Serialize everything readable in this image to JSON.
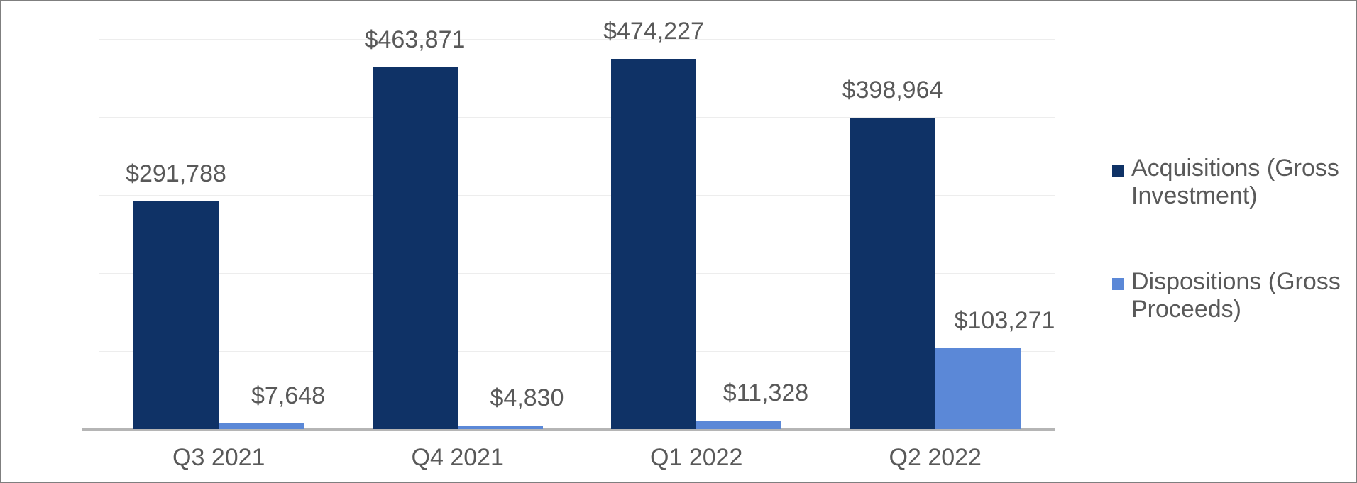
{
  "chart_data": {
    "type": "bar",
    "title": "",
    "xlabel": "",
    "ylabel": "",
    "categories": [
      "Q3 2021",
      "Q4 2021",
      "Q1 2022",
      "Q2 2022"
    ],
    "series": [
      {
        "name": "Acquisitions (Gross Investment)",
        "color": "#0f3266",
        "values": [
          291788,
          463871,
          474227,
          398964
        ],
        "labels": [
          "$291,788",
          "$463,871",
          "$474,227",
          "$398,964"
        ]
      },
      {
        "name": "Dispositions (Gross Proceeds)",
        "color": "#5b88d7",
        "values": [
          7648,
          4830,
          11328,
          103271
        ],
        "labels": [
          "$7,648",
          "$4,830",
          "$11,328",
          "$103,271"
        ]
      }
    ],
    "ylim": [
      0,
      500000
    ],
    "gridline_interval": 100000,
    "grid": true,
    "legend_position": "right"
  },
  "colors": {
    "value_label_text": "#595959",
    "category_label_text": "#595959",
    "legend_text": "#595959",
    "gridline": "#ededed",
    "axis_line": "#b5b5b5",
    "frame_border": "#7f7f7f",
    "background": "#ffffff"
  }
}
